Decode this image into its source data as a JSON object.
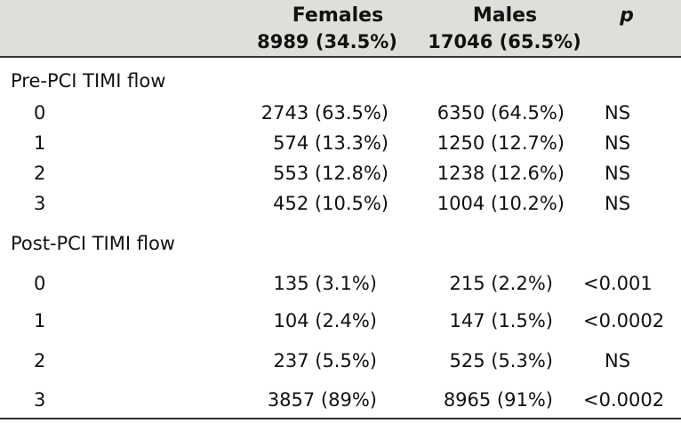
{
  "header": {
    "females_label": "Females",
    "females_count": "8989 (34.5%)",
    "males_label": "Males",
    "males_count": "17046 (65.5%)",
    "p_label": "p"
  },
  "pre_pci": {
    "label": "Pre-PCI TIMI flow",
    "rows": [
      {
        "level": "0",
        "females": "2743 (63.5%)",
        "males": "6350 (64.5%)",
        "p": "NS"
      },
      {
        "level": "1",
        "females": "574 (13.3%)",
        "males": "1250 (12.7%)",
        "p": "NS"
      },
      {
        "level": "2",
        "females": "553 (12.8%)",
        "males": "1238 (12.6%)",
        "p": "NS"
      },
      {
        "level": "3",
        "females": "452 (10.5%)",
        "males": "1004 (10.2%)",
        "p": "NS"
      }
    ]
  },
  "post_pci": {
    "label": "Post-PCI TIMI flow",
    "rows": [
      {
        "level": "0",
        "females": "135 (3.1%)",
        "males": "215 (2.2%)",
        "p": "<0.001"
      },
      {
        "level": "1",
        "females": "104 (2.4%)",
        "males": "147 (1.5%)",
        "p": "<0.0002"
      },
      {
        "level": "2",
        "females": "237 (5.5%)",
        "males": "525 (5.3%)",
        "p": "NS"
      },
      {
        "level": "3",
        "females": "3857 (89%)",
        "males": "8965 (91%)",
        "p": "<0.0002"
      }
    ]
  }
}
